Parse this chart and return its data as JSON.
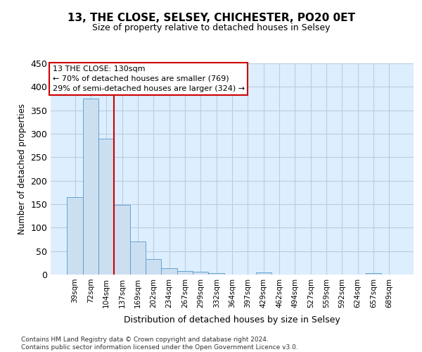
{
  "title": "13, THE CLOSE, SELSEY, CHICHESTER, PO20 0ET",
  "subtitle": "Size of property relative to detached houses in Selsey",
  "xlabel": "Distribution of detached houses by size in Selsey",
  "ylabel": "Number of detached properties",
  "bar_labels": [
    "39sqm",
    "72sqm",
    "104sqm",
    "137sqm",
    "169sqm",
    "202sqm",
    "234sqm",
    "267sqm",
    "299sqm",
    "332sqm",
    "364sqm",
    "397sqm",
    "429sqm",
    "462sqm",
    "494sqm",
    "527sqm",
    "559sqm",
    "592sqm",
    "624sqm",
    "657sqm",
    "689sqm"
  ],
  "bar_values": [
    165,
    375,
    290,
    148,
    70,
    33,
    14,
    7,
    6,
    3,
    0,
    0,
    4,
    0,
    0,
    0,
    0,
    0,
    0,
    3,
    0
  ],
  "bar_color": "#ccdff0",
  "bar_edge_color": "#5599cc",
  "vline_color": "#cc0000",
  "annotation_lines": [
    "13 THE CLOSE: 130sqm",
    "← 70% of detached houses are smaller (769)",
    "29% of semi-detached houses are larger (324) →"
  ],
  "annotation_box_color": "#ffffff",
  "annotation_box_edge": "#cc0000",
  "ylim": [
    0,
    450
  ],
  "yticks": [
    0,
    50,
    100,
    150,
    200,
    250,
    300,
    350,
    400,
    450
  ],
  "grid_color": "#bbccdd",
  "bg_color": "#ddeeff",
  "footer_line1": "Contains HM Land Registry data © Crown copyright and database right 2024.",
  "footer_line2": "Contains public sector information licensed under the Open Government Licence v3.0."
}
